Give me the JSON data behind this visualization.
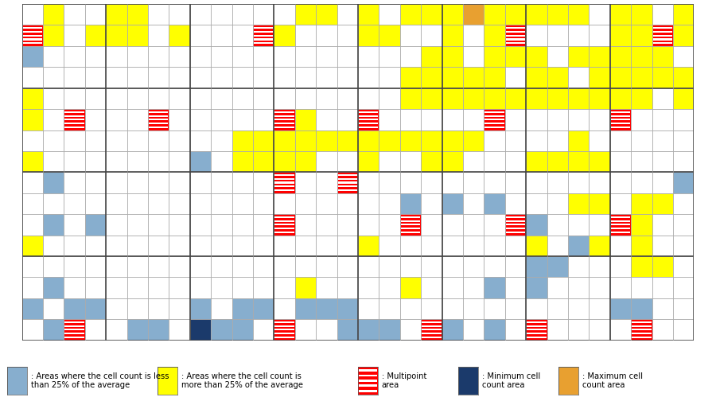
{
  "nrows": 16,
  "ncols": 32,
  "colors": {
    "white": "#FFFFFF",
    "yellow": "#FFFF00",
    "lightblue": "#87AECE",
    "darkblue": "#1B3A6B",
    "orange": "#E8A030",
    "red": "#FF0000",
    "grid_thin": "#AAAAAA",
    "grid_thick": "#444444"
  },
  "grid": [
    [
      0,
      3,
      0,
      0,
      3,
      3,
      0,
      0,
      0,
      0,
      0,
      0,
      0,
      3,
      3,
      0,
      3,
      0,
      3,
      3,
      3,
      5,
      3,
      3,
      3,
      3,
      3,
      0,
      3,
      3,
      0,
      3
    ],
    [
      4,
      3,
      0,
      3,
      3,
      3,
      0,
      3,
      0,
      0,
      0,
      4,
      3,
      0,
      0,
      0,
      3,
      3,
      0,
      0,
      3,
      0,
      3,
      4,
      0,
      0,
      0,
      0,
      3,
      3,
      4,
      3
    ],
    [
      1,
      0,
      0,
      0,
      0,
      0,
      0,
      0,
      0,
      0,
      0,
      0,
      0,
      0,
      0,
      0,
      0,
      0,
      0,
      3,
      3,
      0,
      3,
      3,
      3,
      0,
      3,
      3,
      3,
      3,
      3,
      0
    ],
    [
      0,
      0,
      0,
      0,
      0,
      0,
      0,
      0,
      0,
      0,
      0,
      0,
      0,
      0,
      0,
      0,
      0,
      0,
      3,
      3,
      3,
      3,
      3,
      0,
      3,
      3,
      0,
      3,
      3,
      3,
      3,
      3
    ],
    [
      3,
      0,
      0,
      0,
      0,
      0,
      0,
      0,
      0,
      0,
      0,
      0,
      0,
      0,
      0,
      0,
      0,
      0,
      3,
      3,
      3,
      3,
      3,
      3,
      3,
      3,
      3,
      3,
      3,
      3,
      0,
      3
    ],
    [
      3,
      0,
      4,
      0,
      0,
      0,
      4,
      0,
      0,
      0,
      0,
      0,
      4,
      3,
      0,
      0,
      4,
      0,
      0,
      0,
      0,
      0,
      4,
      0,
      0,
      0,
      0,
      0,
      4,
      0,
      0,
      0
    ],
    [
      0,
      0,
      0,
      0,
      0,
      0,
      0,
      0,
      0,
      0,
      3,
      3,
      3,
      3,
      3,
      3,
      3,
      3,
      3,
      3,
      3,
      3,
      0,
      0,
      0,
      0,
      3,
      0,
      0,
      0,
      0,
      0
    ],
    [
      3,
      0,
      0,
      0,
      0,
      0,
      0,
      0,
      1,
      0,
      3,
      3,
      3,
      3,
      0,
      0,
      3,
      0,
      0,
      3,
      3,
      0,
      0,
      0,
      3,
      3,
      3,
      3,
      0,
      0,
      0,
      0
    ],
    [
      0,
      1,
      0,
      0,
      0,
      0,
      0,
      0,
      0,
      0,
      0,
      0,
      4,
      0,
      0,
      4,
      0,
      0,
      0,
      0,
      0,
      0,
      0,
      0,
      0,
      0,
      0,
      0,
      0,
      0,
      0,
      1
    ],
    [
      0,
      0,
      0,
      0,
      0,
      0,
      0,
      0,
      0,
      0,
      0,
      0,
      0,
      0,
      0,
      0,
      0,
      0,
      1,
      0,
      1,
      0,
      1,
      0,
      0,
      0,
      3,
      3,
      0,
      3,
      3,
      0
    ],
    [
      0,
      1,
      0,
      1,
      0,
      0,
      0,
      0,
      0,
      0,
      0,
      0,
      4,
      0,
      0,
      0,
      0,
      0,
      4,
      0,
      0,
      0,
      0,
      4,
      1,
      0,
      0,
      0,
      4,
      3,
      0,
      0
    ],
    [
      3,
      0,
      0,
      0,
      0,
      0,
      0,
      0,
      0,
      0,
      0,
      0,
      0,
      0,
      0,
      0,
      3,
      0,
      0,
      0,
      0,
      0,
      0,
      0,
      3,
      0,
      1,
      3,
      0,
      3,
      0,
      0
    ],
    [
      0,
      0,
      0,
      0,
      0,
      0,
      0,
      0,
      0,
      0,
      0,
      0,
      0,
      0,
      0,
      0,
      0,
      0,
      0,
      0,
      0,
      0,
      0,
      0,
      1,
      1,
      0,
      0,
      0,
      3,
      3,
      0
    ],
    [
      0,
      1,
      0,
      0,
      0,
      0,
      0,
      0,
      0,
      0,
      0,
      0,
      0,
      3,
      0,
      0,
      0,
      0,
      3,
      0,
      0,
      0,
      1,
      0,
      1,
      0,
      0,
      0,
      0,
      0,
      0,
      0
    ],
    [
      1,
      0,
      1,
      1,
      0,
      0,
      0,
      0,
      1,
      0,
      1,
      1,
      0,
      1,
      1,
      1,
      0,
      0,
      0,
      0,
      0,
      0,
      0,
      0,
      0,
      0,
      0,
      0,
      1,
      1,
      0,
      0
    ],
    [
      0,
      1,
      4,
      0,
      0,
      1,
      1,
      0,
      2,
      1,
      1,
      0,
      4,
      0,
      0,
      1,
      1,
      1,
      0,
      4,
      1,
      0,
      1,
      0,
      4,
      0,
      0,
      0,
      0,
      4,
      0,
      0
    ]
  ],
  "legend_items": [
    {
      "color": "#87AECE",
      "label": ": Areas where the cell count is less\nthan 25% of the average"
    },
    {
      "color": "#FFFF00",
      "label": ": Areas where the cell count is\nmore than 25% of the average"
    },
    {
      "color": "stripe",
      "label": ": Multipoint\narea"
    },
    {
      "color": "#1B3A6B",
      "label": ": Minimum cell\ncount area"
    },
    {
      "color": "#E8A030",
      "label": ": Maximum cell\ncount area"
    }
  ]
}
